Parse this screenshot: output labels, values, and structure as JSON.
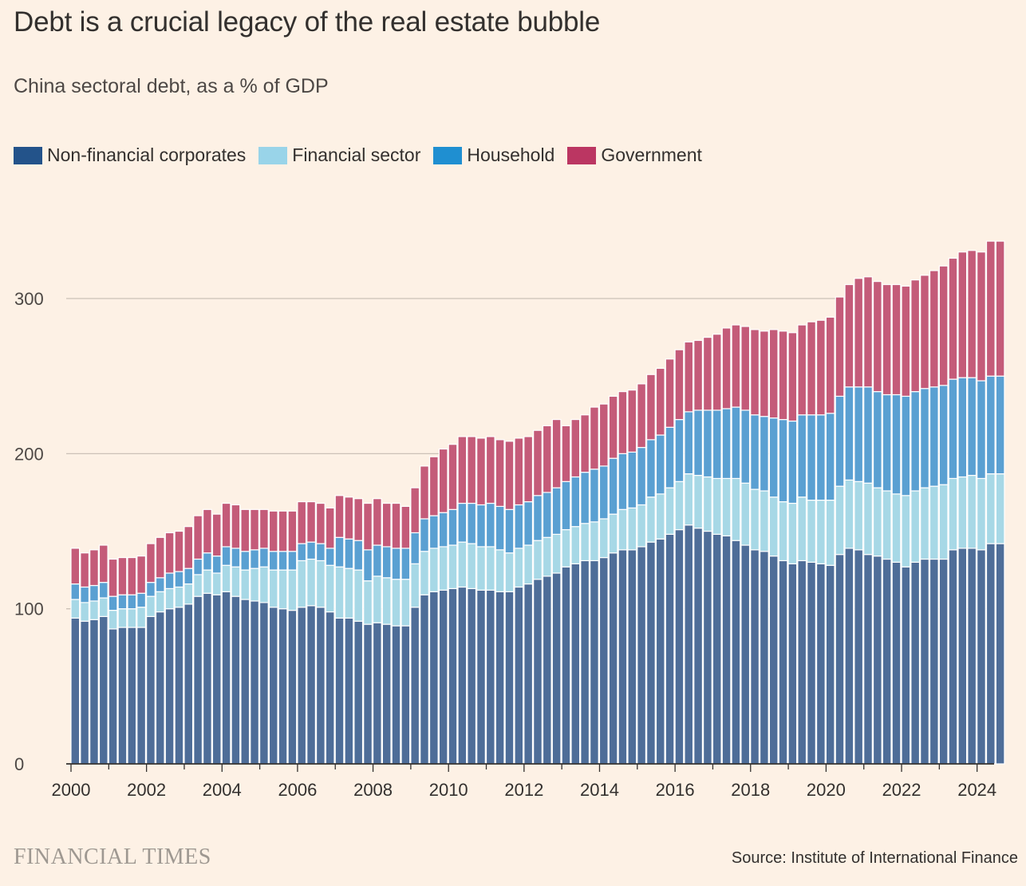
{
  "header": {
    "title": "Debt is a crucial legacy of the real estate bubble",
    "subtitle": "China sectoral debt, as a % of GDP"
  },
  "footer": {
    "brand": "FINANCIAL TIMES",
    "source": "Source: Institute of International Finance"
  },
  "colors": {
    "background": "#fdf1e5",
    "gridline": "#ccc1b7",
    "axis": "#33302e"
  },
  "chart_data": {
    "type": "bar",
    "stacked": true,
    "frequency": "quarterly",
    "first_period": "2000 Q1",
    "x_tick_labels": [
      "2000",
      "2002",
      "2004",
      "2006",
      "2008",
      "2010",
      "2012",
      "2014",
      "2016",
      "2018",
      "2020",
      "2022",
      "2024"
    ],
    "y_tick_labels": [
      "0",
      "100",
      "200",
      "300"
    ],
    "ylim": [
      0,
      340
    ],
    "grid": true,
    "legend_position": "top-left",
    "xlabel": "",
    "ylabel": "",
    "series": [
      {
        "name": "Non-financial corporates",
        "color": "#4e6d98",
        "legend_color": "#23538a",
        "values": [
          94,
          92,
          93,
          95,
          87,
          88,
          88,
          88,
          95,
          98,
          100,
          101,
          103,
          108,
          110,
          109,
          111,
          108,
          106,
          105,
          104,
          101,
          100,
          99,
          101,
          102,
          101,
          98,
          94,
          94,
          92,
          90,
          91,
          90,
          89,
          89,
          101,
          109,
          111,
          112,
          113,
          114,
          113,
          112,
          112,
          111,
          111,
          114,
          116,
          119,
          121,
          123,
          127,
          129,
          131,
          131,
          133,
          136,
          138,
          138,
          140,
          143,
          145,
          148,
          151,
          154,
          152,
          150,
          148,
          147,
          144,
          141,
          138,
          137,
          134,
          131,
          129,
          131,
          130,
          129,
          128,
          135,
          139,
          138,
          135,
          134,
          132,
          130,
          127,
          130,
          132,
          132,
          132,
          138,
          139,
          139,
          138,
          142,
          142
        ]
      },
      {
        "name": "Financial sector",
        "color": "#a7d8e6",
        "legend_color": "#99d4e9",
        "values": [
          12,
          12,
          12,
          12,
          12,
          12,
          12,
          13,
          13,
          13,
          13,
          13,
          13,
          14,
          15,
          14,
          17,
          19,
          19,
          21,
          23,
          24,
          25,
          26,
          30,
          30,
          30,
          30,
          33,
          32,
          33,
          28,
          30,
          30,
          30,
          30,
          28,
          28,
          28,
          28,
          28,
          29,
          29,
          28,
          28,
          27,
          25,
          25,
          25,
          25,
          25,
          25,
          24,
          24,
          24,
          25,
          25,
          25,
          26,
          27,
          27,
          29,
          29,
          30,
          31,
          33,
          34,
          35,
          36,
          37,
          40,
          40,
          39,
          39,
          38,
          38,
          39,
          41,
          40,
          41,
          42,
          44,
          44,
          44,
          46,
          44,
          44,
          44,
          46,
          46,
          46,
          47,
          48,
          46,
          46,
          47,
          46,
          45,
          45
        ]
      },
      {
        "name": "Household",
        "color": "#5aa0d2",
        "legend_color": "#1f8fd1",
        "values": [
          10,
          10,
          10,
          10,
          9,
          9,
          9,
          9,
          9,
          9,
          10,
          10,
          10,
          10,
          11,
          11,
          12,
          12,
          12,
          12,
          12,
          12,
          12,
          12,
          11,
          11,
          11,
          11,
          19,
          19,
          19,
          20,
          20,
          20,
          20,
          20,
          20,
          21,
          21,
          22,
          23,
          25,
          26,
          27,
          28,
          28,
          28,
          28,
          28,
          29,
          29,
          30,
          31,
          32,
          33,
          34,
          34,
          36,
          36,
          36,
          37,
          37,
          38,
          39,
          40,
          40,
          42,
          43,
          44,
          45,
          46,
          47,
          48,
          48,
          51,
          53,
          53,
          53,
          55,
          55,
          56,
          58,
          60,
          61,
          62,
          62,
          62,
          64,
          64,
          64,
          64,
          64,
          64,
          64,
          64,
          63,
          63,
          63,
          63
        ]
      },
      {
        "name": "Government",
        "color": "#c45b79",
        "legend_color": "#bb3662",
        "values": [
          23,
          22,
          23,
          24,
          24,
          24,
          24,
          24,
          25,
          26,
          26,
          26,
          27,
          28,
          28,
          27,
          28,
          28,
          27,
          26,
          25,
          26,
          26,
          26,
          27,
          26,
          26,
          26,
          27,
          27,
          27,
          30,
          30,
          28,
          29,
          27,
          29,
          34,
          38,
          41,
          42,
          43,
          43,
          43,
          43,
          43,
          44,
          43,
          42,
          42,
          43,
          44,
          36,
          37,
          37,
          40,
          40,
          40,
          40,
          40,
          41,
          42,
          43,
          44,
          45,
          45,
          45,
          47,
          49,
          52,
          53,
          54,
          55,
          55,
          57,
          57,
          57,
          58,
          60,
          61,
          62,
          64,
          66,
          70,
          71,
          71,
          71,
          71,
          71,
          72,
          73,
          75,
          77,
          78,
          81,
          82,
          83,
          87,
          87
        ]
      }
    ]
  }
}
